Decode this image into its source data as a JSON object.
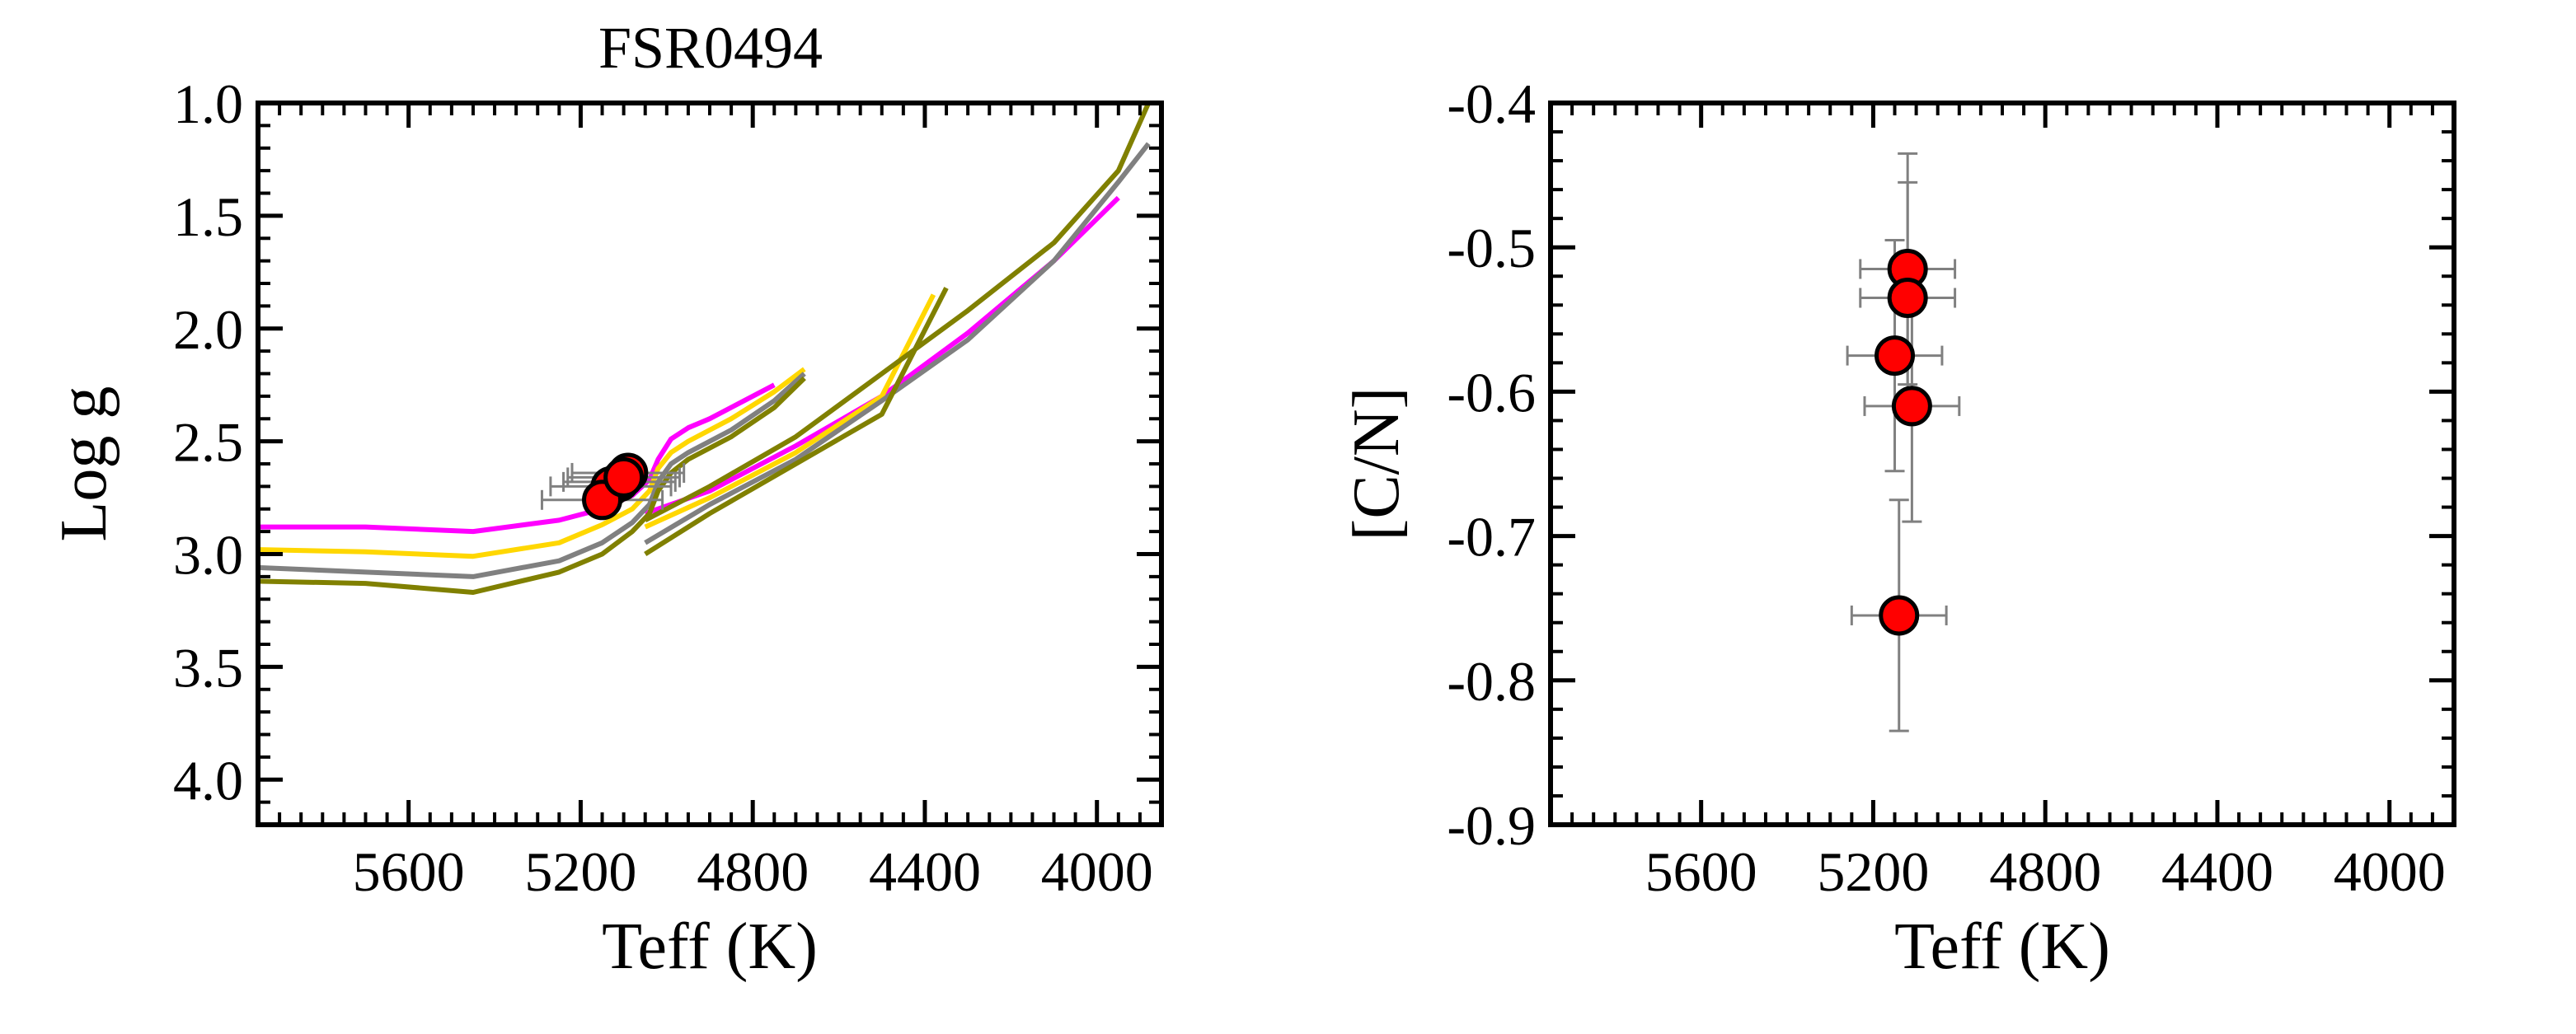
{
  "chart_data": [
    {
      "type": "line",
      "title": "FSR0494",
      "xlabel": "Teff (K)",
      "ylabel": "Log g",
      "xlim": [
        5950,
        3850
      ],
      "ylim": [
        4.2,
        1.0
      ],
      "x_reversed": true,
      "y_reversed": true,
      "xticks": [
        5600,
        5200,
        4800,
        4400,
        4000
      ],
      "yticks": [
        1.0,
        1.5,
        2.0,
        2.5,
        3.0,
        3.5,
        4.0
      ],
      "ytick_labels": [
        "1.0",
        "1.5",
        "2.0",
        "2.5",
        "3.0",
        "3.5",
        "4.0"
      ],
      "grid": false,
      "series": [
        {
          "color": "#ff00ff",
          "points": [
            [
              5950,
              2.88
            ],
            [
              5700,
              2.88
            ],
            [
              5450,
              2.9
            ],
            [
              5250,
              2.85
            ],
            [
              5150,
              2.8
            ],
            [
              5080,
              2.74
            ],
            [
              5040,
              2.67
            ],
            [
              5020,
              2.58
            ],
            [
              4990,
              2.49
            ],
            [
              4950,
              2.44
            ],
            [
              4900,
              2.4
            ],
            [
              4820,
              2.32
            ],
            [
              4750,
              2.25
            ]
          ]
        },
        {
          "color": "#ff00ff",
          "points": [
            [
              5050,
              2.82
            ],
            [
              4900,
              2.72
            ],
            [
              4700,
              2.52
            ],
            [
              4500,
              2.3
            ],
            [
              4300,
              2.02
            ],
            [
              4100,
              1.7
            ],
            [
              3950,
              1.42
            ]
          ]
        },
        {
          "color": "#ffd700",
          "points": [
            [
              5950,
              2.98
            ],
            [
              5700,
              2.99
            ],
            [
              5450,
              3.01
            ],
            [
              5250,
              2.95
            ],
            [
              5150,
              2.87
            ],
            [
              5080,
              2.8
            ],
            [
              5040,
              2.72
            ],
            [
              5020,
              2.62
            ],
            [
              4990,
              2.55
            ],
            [
              4950,
              2.5
            ],
            [
              4850,
              2.4
            ],
            [
              4750,
              2.28
            ],
            [
              4680,
              2.18
            ]
          ]
        },
        {
          "color": "#ffd700",
          "points": [
            [
              5050,
              2.88
            ],
            [
              4900,
              2.75
            ],
            [
              4700,
              2.55
            ],
            [
              4500,
              2.3
            ],
            [
              4380,
              1.85
            ]
          ]
        },
        {
          "color": "#808080",
          "points": [
            [
              5950,
              3.06
            ],
            [
              5700,
              3.08
            ],
            [
              5450,
              3.1
            ],
            [
              5250,
              3.03
            ],
            [
              5150,
              2.95
            ],
            [
              5080,
              2.86
            ],
            [
              5040,
              2.78
            ],
            [
              5020,
              2.68
            ],
            [
              4990,
              2.6
            ],
            [
              4950,
              2.55
            ],
            [
              4850,
              2.45
            ],
            [
              4750,
              2.32
            ],
            [
              4680,
              2.2
            ]
          ]
        },
        {
          "color": "#808080",
          "points": [
            [
              5050,
              2.95
            ],
            [
              4900,
              2.78
            ],
            [
              4700,
              2.58
            ],
            [
              4500,
              2.32
            ],
            [
              4300,
              2.05
            ],
            [
              4100,
              1.7
            ],
            [
              3950,
              1.35
            ],
            [
              3880,
              1.18
            ]
          ]
        },
        {
          "color": "#808000",
          "points": [
            [
              5950,
              3.12
            ],
            [
              5700,
              3.13
            ],
            [
              5450,
              3.17
            ],
            [
              5250,
              3.08
            ],
            [
              5150,
              3.0
            ],
            [
              5080,
              2.9
            ],
            [
              5040,
              2.82
            ],
            [
              5020,
              2.72
            ],
            [
              4990,
              2.64
            ],
            [
              4950,
              2.58
            ],
            [
              4850,
              2.48
            ],
            [
              4750,
              2.35
            ],
            [
              4680,
              2.22
            ]
          ]
        },
        {
          "color": "#808000",
          "points": [
            [
              5050,
              3.0
            ],
            [
              4900,
              2.82
            ],
            [
              4700,
              2.6
            ],
            [
              4500,
              2.38
            ],
            [
              4350,
              1.82
            ]
          ]
        },
        {
          "color": "#808000",
          "points": [
            [
              5050,
              2.85
            ],
            [
              4900,
              2.7
            ],
            [
              4700,
              2.48
            ],
            [
              4500,
              2.2
            ],
            [
              4300,
              1.92
            ],
            [
              4100,
              1.62
            ],
            [
              3950,
              1.3
            ],
            [
              3880,
              1.0
            ]
          ]
        }
      ],
      "scatter": {
        "color": "#ff0000",
        "edge": "#000000",
        "points": [
          {
            "x": 5090,
            "y": 2.64,
            "xerr": 130,
            "yerr": 0.05
          },
          {
            "x": 5110,
            "y": 2.68,
            "xerr": 130,
            "yerr": 0.05
          },
          {
            "x": 5130,
            "y": 2.7,
            "xerr": 140,
            "yerr": 0.05
          },
          {
            "x": 5150,
            "y": 2.76,
            "xerr": 140,
            "yerr": 0.05
          },
          {
            "x": 5100,
            "y": 2.66,
            "xerr": 130,
            "yerr": 0.05
          }
        ]
      }
    },
    {
      "type": "scatter",
      "title": "",
      "xlabel": "Teff (K)",
      "ylabel": "[C/N]",
      "xlim": [
        5950,
        3850
      ],
      "ylim": [
        -0.9,
        -0.4
      ],
      "x_reversed": true,
      "xticks": [
        5600,
        5200,
        4800,
        4400,
        4000
      ],
      "yticks": [
        -0.4,
        -0.5,
        -0.6,
        -0.7,
        -0.8,
        -0.9
      ],
      "ytick_labels": [
        "-0.4",
        "-0.5",
        "-0.6",
        "-0.7",
        "-0.8",
        "-0.9"
      ],
      "grid": false,
      "color": "#ff0000",
      "edge": "#000000",
      "points": [
        {
          "x": 5120,
          "y": -0.515,
          "xerr": 110,
          "yerr": 0.08
        },
        {
          "x": 5120,
          "y": -0.535,
          "xerr": 110,
          "yerr": 0.08
        },
        {
          "x": 5150,
          "y": -0.575,
          "xerr": 110,
          "yerr": 0.08
        },
        {
          "x": 5110,
          "y": -0.61,
          "xerr": 110,
          "yerr": 0.08
        },
        {
          "x": 5140,
          "y": -0.755,
          "xerr": 110,
          "yerr": 0.08
        }
      ]
    }
  ]
}
